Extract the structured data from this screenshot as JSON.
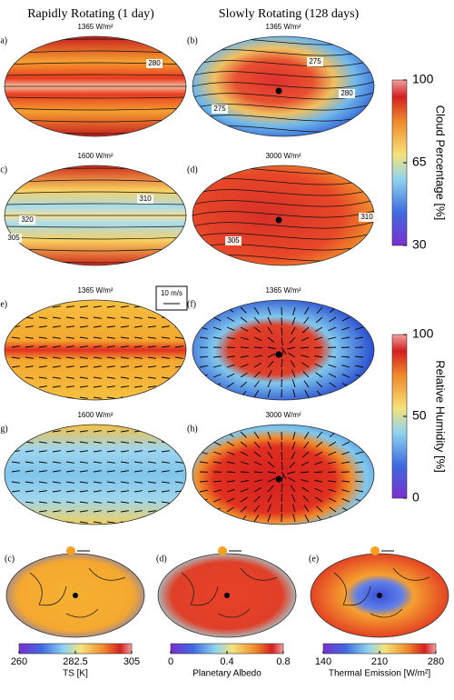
{
  "columns": [
    "Rapidly Rotating (1 day)",
    "Slowly Rotating (128 days)"
  ],
  "panels": [
    {
      "label": "(a)",
      "title": "1365 W/m²",
      "contours": [
        "280"
      ]
    },
    {
      "label": "(b)",
      "title": "1365 W/m²",
      "contours": [
        "275",
        "280",
        "275"
      ]
    },
    {
      "label": "(c)",
      "title": "1600 W/m²",
      "contours": [
        "310",
        "320",
        "305"
      ]
    },
    {
      "label": "(d)",
      "title": "3000 W/m²",
      "contours": [
        "305",
        "310"
      ]
    },
    {
      "label": "(e)",
      "title": "1365 W/m²",
      "contours": []
    },
    {
      "label": "(f)",
      "title": "1365 W/m²",
      "contours": []
    },
    {
      "label": "(g)",
      "title": "1600 W/m²",
      "contours": []
    },
    {
      "label": "(h)",
      "title": "3000 W/m²",
      "contours": []
    }
  ],
  "wind_scale": "10 m/s",
  "colorbars": [
    {
      "label": "Cloud Percentage [%]",
      "lim": [
        30,
        100
      ],
      "ticks": [
        30,
        65,
        100
      ]
    },
    {
      "label": "Relative Humidity [%]",
      "lim": [
        0,
        100
      ],
      "ticks": [
        0,
        50,
        100
      ]
    }
  ],
  "bottom_panels": [
    {
      "label": "(c)",
      "colorbar": {
        "label": "TS [K]",
        "lim": [
          260,
          305
        ],
        "ticks": [
          260,
          282.5,
          305
        ]
      }
    },
    {
      "label": "(d)",
      "colorbar": {
        "label": "Planetary Albedo",
        "lim": [
          0,
          0.8
        ],
        "ticks": [
          0,
          0.4,
          0.8
        ]
      }
    },
    {
      "label": "(e)",
      "colorbar": {
        "label": "Thermal Emission [W/m²]",
        "lim": [
          140,
          280
        ],
        "ticks": [
          140,
          210,
          280
        ]
      }
    }
  ]
}
